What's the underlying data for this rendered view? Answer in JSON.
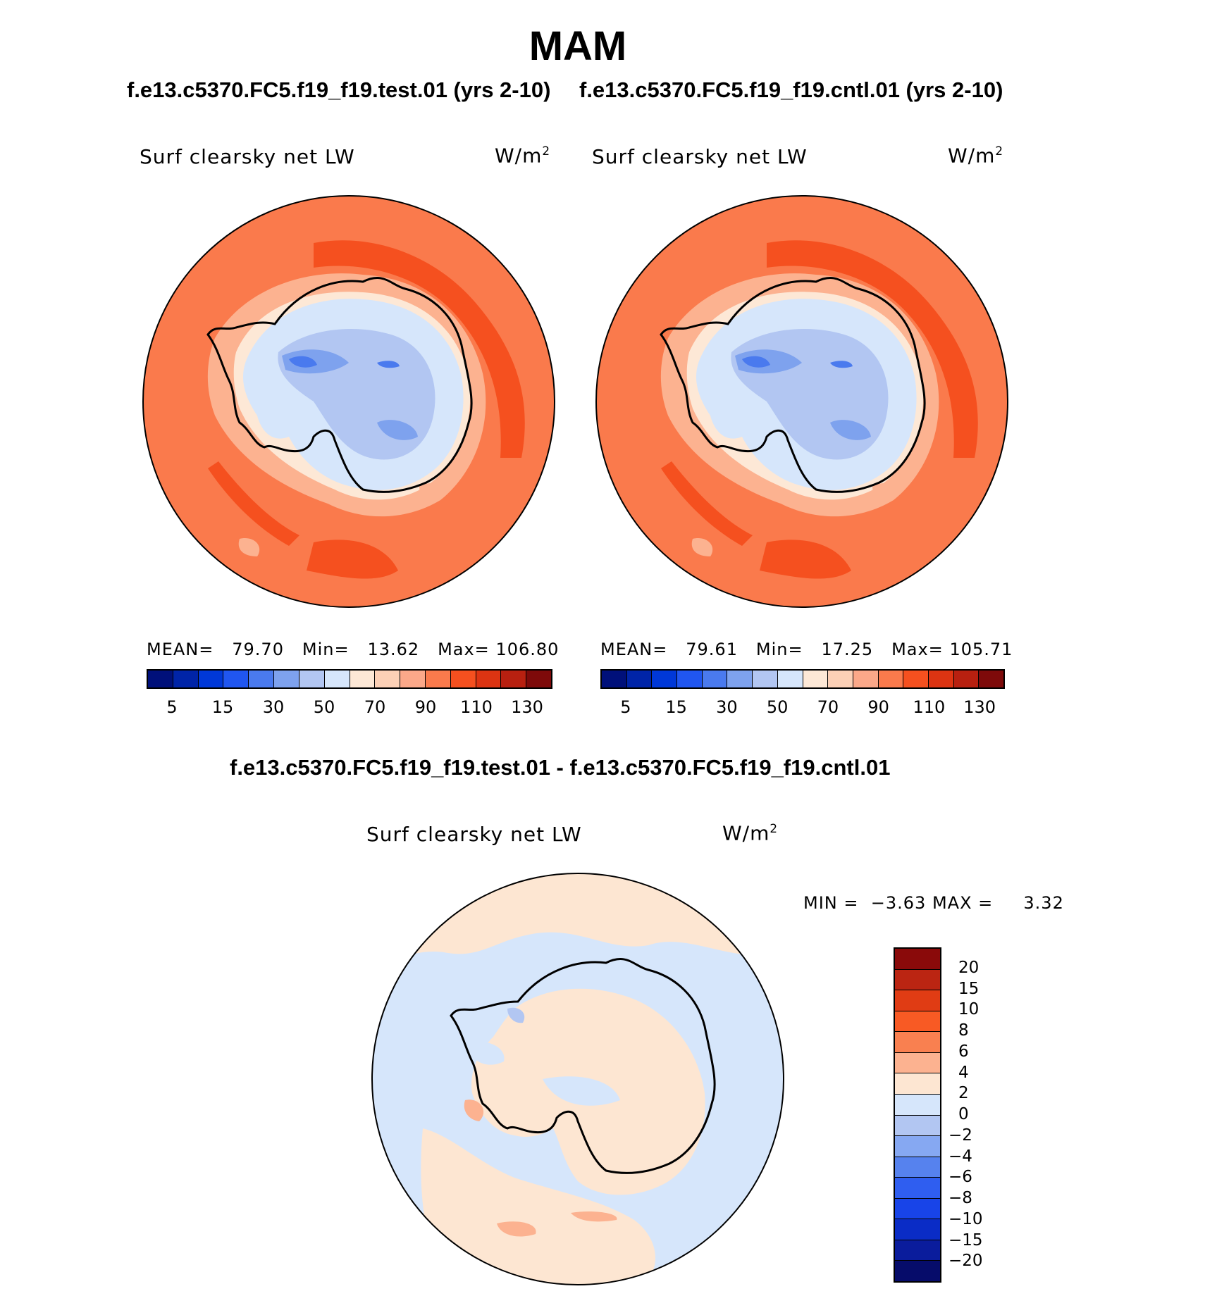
{
  "title": "MAM",
  "top_subtitle_left": "f.e13.c5370.FC5.f19_f19.test.01 (yrs 2-10)",
  "top_subtitle_right": "f.e13.c5370.FC5.f19_f19.cntl.01 (yrs 2-10)",
  "diff_subtitle": "f.e13.c5370.FC5.f19_f19.test.01 - f.e13.c5370.FC5.f19_f19.cntl.01",
  "panels": [
    {
      "variable": "Surf clearsky net LW",
      "unit_base": "W/m",
      "unit_exp": "2",
      "stats": {
        "mean_label": "MEAN=",
        "mean": "79.70",
        "min_label": "Min=",
        "min": "13.62",
        "max_label": "Max=",
        "max": "106.80"
      }
    },
    {
      "variable": "Surf clearsky net LW",
      "unit_base": "W/m",
      "unit_exp": "2",
      "stats": {
        "mean_label": "MEAN=",
        "mean": "79.61",
        "min_label": "Min=",
        "min": "17.25",
        "max_label": "Max=",
        "max": "105.71"
      }
    },
    {
      "variable": "Surf clearsky net LW",
      "unit_base": "W/m",
      "unit_exp": "2",
      "stats": {
        "min_label": "MIN =",
        "min": "−3.63",
        "max_label": "MAX =",
        "max": "3.32"
      }
    }
  ],
  "abs_colorbar": {
    "colors": [
      "#00107a",
      "#0024a8",
      "#0038d8",
      "#2056f0",
      "#4a7aee",
      "#7ea2ee",
      "#b2c6f2",
      "#d6e6fb",
      "#fde8d6",
      "#fcd0b6",
      "#fba889",
      "#fa7a4c",
      "#f5501f",
      "#dd3412",
      "#b82010",
      "#7e0a0a"
    ],
    "labels": [
      "5",
      "15",
      "30",
      "50",
      "70",
      "90",
      "110",
      "130"
    ]
  },
  "diff_colorbar": {
    "colors": [
      "#8a0a0a",
      "#bb2512",
      "#e03c14",
      "#f85a24",
      "#f98050",
      "#fcb290",
      "#fde6d2",
      "#d6e6fb",
      "#b2c6f2",
      "#86a8f2",
      "#5682ee",
      "#2f5ef0",
      "#1844e8",
      "#0a2cc6",
      "#0a1c9c",
      "#060c6a"
    ],
    "labels": [
      "20",
      "15",
      "10",
      "8",
      "6",
      "4",
      "2",
      "0",
      "−2",
      "−4",
      "−6",
      "−8",
      "−10",
      "−15",
      "−20"
    ]
  },
  "colors": {
    "ocean_warm": "#fa7a4c",
    "ocean_strong": "#f5501f",
    "coast_light": "#fcb290",
    "coast_pale": "#fde8d6",
    "ice_pale": "#d6e6fb",
    "ice_mid": "#b2c6f2",
    "ice_deep": "#7ea2ee",
    "ice_core": "#4a7aee",
    "diff_pos": "#fde6d2",
    "diff_neg": "#d6e6fb",
    "diff_pos2": "#fcb290",
    "diff_neg2": "#b2c6f2"
  }
}
